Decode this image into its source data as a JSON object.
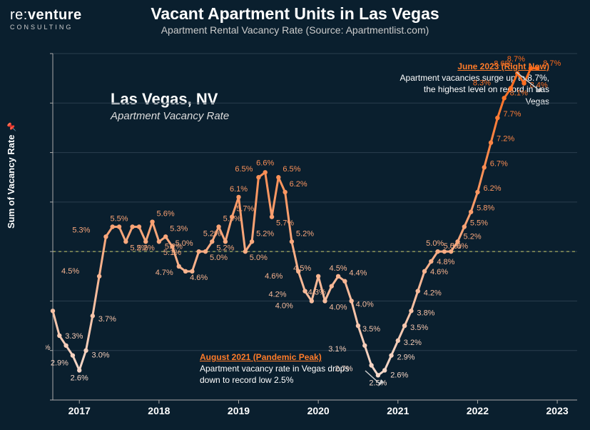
{
  "logo": {
    "prefix": "re",
    "colon": ":",
    "bold": "venture",
    "sub": "CONSULTING"
  },
  "title": "Vacant Apartment Units in Las Vegas",
  "subtitle": "Apartment Rental Vacancy Rate (Source: Apartmentlist.com)",
  "ylabel": "Sum of Vacancy Rate",
  "city": "Las Vegas, NV",
  "city_sub": "Apartment Vacancy Rate",
  "chart": {
    "type": "line",
    "xlim": [
      0,
      79
    ],
    "ylim": [
      2.0,
      9.0
    ],
    "yticks": [
      2.0,
      3.0,
      4.0,
      5.0,
      6.0,
      7.0,
      8.0,
      9.0
    ],
    "xticks": [
      {
        "idx": 4,
        "label": "2017"
      },
      {
        "idx": 16,
        "label": "2018"
      },
      {
        "idx": 28,
        "label": "2019"
      },
      {
        "idx": 40,
        "label": "2020"
      },
      {
        "idx": 52,
        "label": "2021"
      },
      {
        "idx": 64,
        "label": "2022"
      },
      {
        "idx": 76,
        "label": "2023"
      }
    ],
    "dashed_y": 5.0,
    "background": "#0a1f2e",
    "grid_color": "#2a3f4e",
    "dash_color": "#c9c96a",
    "axis_color": "#aaaaaa",
    "gradient_low": "#f4d8ca",
    "gradient_high": "#ff6a1a",
    "line_width": 3,
    "marker_radius": 3.2,
    "values": [
      3.8,
      3.3,
      3.1,
      2.9,
      2.6,
      3.0,
      3.7,
      4.5,
      5.3,
      5.5,
      5.5,
      5.2,
      5.5,
      5.5,
      5.2,
      5.6,
      5.2,
      5.3,
      5.1,
      4.7,
      4.6,
      4.6,
      5.0,
      5.0,
      5.2,
      5.5,
      5.2,
      5.7,
      6.1,
      5.0,
      5.2,
      6.5,
      6.6,
      5.7,
      6.5,
      6.2,
      5.2,
      4.6,
      4.2,
      4.0,
      4.5,
      4.0,
      4.3,
      4.5,
      4.4,
      4.0,
      3.5,
      3.1,
      2.7,
      2.5,
      2.6,
      2.9,
      3.2,
      3.5,
      3.8,
      4.2,
      4.6,
      4.8,
      5.0,
      5.0,
      5.0,
      5.2,
      5.5,
      5.8,
      6.2,
      6.7,
      7.2,
      7.7,
      8.1,
      8.3,
      8.6,
      8.4,
      8.7,
      8.7
    ],
    "label_overrides": {
      "9": "",
      "12": "",
      "13": "",
      "21": "",
      "42": "4.3%"
    },
    "label_offsets": {
      "0": [
        -18,
        -6
      ],
      "1": [
        8,
        4
      ],
      "2": [
        -22,
        6
      ],
      "3": [
        -6,
        14
      ],
      "4": [
        0,
        14
      ],
      "5": [
        8,
        10
      ],
      "6": [
        8,
        8
      ],
      "7": [
        -28,
        -4
      ],
      "8": [
        -22,
        -6
      ],
      "10": [
        0,
        -8
      ],
      "11": [
        6,
        12
      ],
      "14": [
        0,
        12
      ],
      "15": [
        6,
        -8
      ],
      "16": [
        8,
        10
      ],
      "17": [
        6,
        -8
      ],
      "18": [
        0,
        12
      ],
      "19": [
        -8,
        12
      ],
      "20": [
        6,
        12
      ],
      "22": [
        -8,
        -8
      ],
      "23": [
        6,
        12
      ],
      "24": [
        0,
        -8
      ],
      "25": [
        6,
        -8
      ],
      "26": [
        0,
        12
      ],
      "27": [
        6,
        -8
      ],
      "28": [
        0,
        -8
      ],
      "29": [
        6,
        12
      ],
      "30": [
        6,
        -8
      ],
      "31": [
        -8,
        -8
      ],
      "32": [
        0,
        -10
      ],
      "33": [
        6,
        12
      ],
      "34": [
        6,
        -8
      ],
      "35": [
        6,
        -8
      ],
      "36": [
        6,
        -8
      ],
      "37": [
        -22,
        10
      ],
      "38": [
        -26,
        8
      ],
      "39": [
        -26,
        10
      ],
      "40": [
        -10,
        -8
      ],
      "41": [
        6,
        12
      ],
      "42": [
        -8,
        12
      ],
      "43": [
        0,
        -8
      ],
      "44": [
        6,
        -8
      ],
      "45": [
        6,
        8
      ],
      "46": [
        6,
        8
      ],
      "47": [
        -26,
        8
      ],
      "48": [
        -26,
        8
      ],
      "49": [
        0,
        14
      ],
      "50": [
        8,
        10
      ],
      "51": [
        8,
        6
      ],
      "52": [
        8,
        6
      ],
      "53": [
        8,
        6
      ],
      "54": [
        8,
        6
      ],
      "55": [
        8,
        6
      ],
      "56": [
        8,
        4
      ],
      "57": [
        8,
        4
      ],
      "58": [
        8,
        -4
      ],
      "59": [
        8,
        -4
      ],
      "60": [
        -10,
        -8
      ],
      "61": [
        8,
        -4
      ],
      "62": [
        8,
        -2
      ],
      "63": [
        8,
        -2
      ],
      "64": [
        8,
        -2
      ],
      "65": [
        8,
        -2
      ],
      "66": [
        8,
        -2
      ],
      "67": [
        8,
        -2
      ],
      "68": [
        8,
        -4
      ],
      "69": [
        -28,
        -4
      ],
      "70": [
        -8,
        -10
      ],
      "71": [
        8,
        6
      ],
      "72": [
        -8,
        -10
      ],
      "73": [
        8,
        -4
      ]
    }
  },
  "annot_top": {
    "head": "June 2023 (Right Now)",
    "body": "Apartment vacancies surge up to 8.7%, the highest level on record in Las Vegas"
  },
  "annot_bot": {
    "head": "August 2021 (Pandemic Peak)",
    "body": "Apartment vacancy rate in Vegas drops down to record low 2.5%"
  }
}
